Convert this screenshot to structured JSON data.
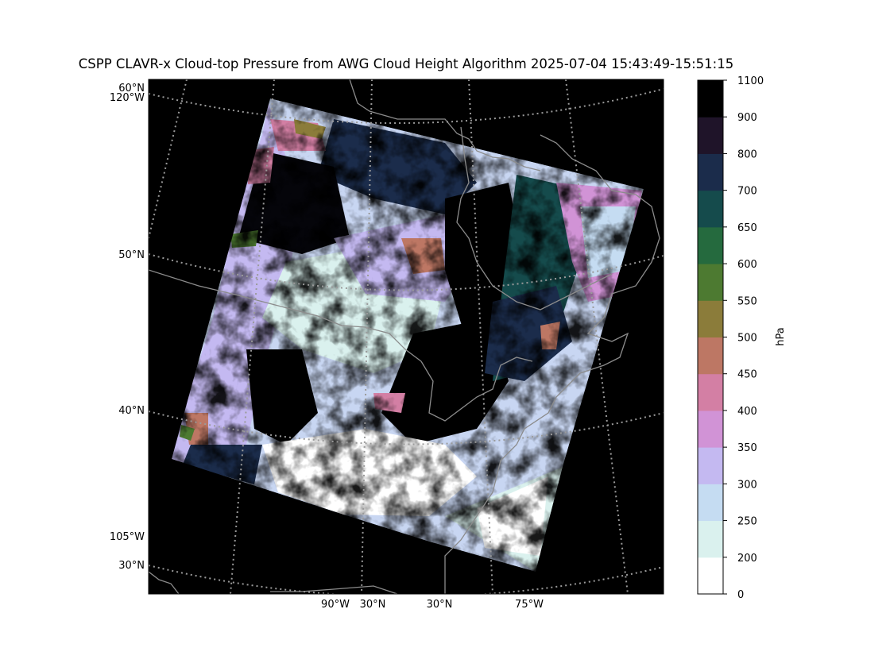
{
  "title": "CSPP CLAVR-x Cloud-top Pressure from AWG Cloud Height Algorithm 2025-07-04 15:43:49-15:51:15",
  "map": {
    "background_color": "#000000",
    "gridline_color": "#9a9a9a",
    "coastline_color": "#8c8c8c",
    "left_labels": [
      "60°N",
      "120°W",
      "50°N",
      "40°N",
      "105°W",
      "30°N"
    ],
    "bottom_labels": [
      "90°W",
      "30°N",
      "30°N",
      "75°W"
    ]
  },
  "colorbar": {
    "label": "hPa",
    "ticks": [
      "0",
      "200",
      "250",
      "300",
      "350",
      "400",
      "450",
      "500",
      "550",
      "600",
      "650",
      "700",
      "800",
      "900",
      "1100"
    ],
    "colors": [
      "#ffffff",
      "#daf1ee",
      "#c5dcf2",
      "#c4b9f1",
      "#d193d6",
      "#d37fa4",
      "#bd7764",
      "#8b7c3a",
      "#4d7a31",
      "#256a3e",
      "#154b4c",
      "#1b2c4b",
      "#1f1429",
      "#000000"
    ]
  }
}
